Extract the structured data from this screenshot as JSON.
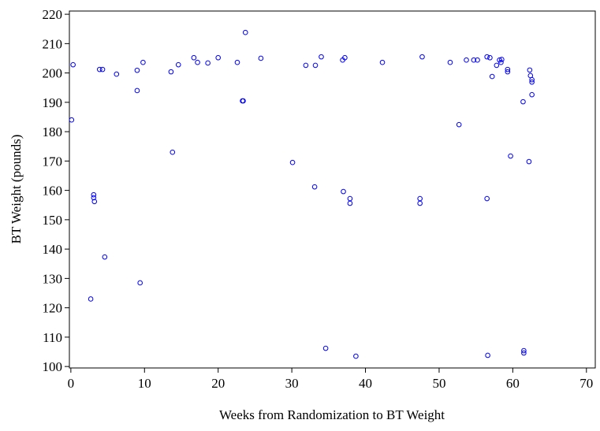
{
  "chart_data": {
    "type": "scatter",
    "x_label": "Weeks from Randomization to BT Weight",
    "y_label": "BT Weight (pounds)",
    "xlim": [
      -0.2,
      71.2
    ],
    "ylim": [
      99.5,
      221.1
    ],
    "xticks": [
      0,
      10,
      20,
      30,
      40,
      50,
      60,
      70
    ],
    "yticks": [
      100,
      110,
      120,
      130,
      140,
      150,
      160,
      170,
      180,
      190,
      200,
      210,
      220
    ],
    "color": "#0000ff",
    "x": [
      0.1,
      0.3,
      2.7,
      3.1,
      3.1,
      3.2,
      3.9,
      4.3,
      4.6,
      6.2,
      9.0,
      9.0,
      9.4,
      9.8,
      13.6,
      13.8,
      14.6,
      16.7,
      17.2,
      18.6,
      20.0,
      22.6,
      23.3,
      23.4,
      23.7,
      25.8,
      30.1,
      31.9,
      33.1,
      33.2,
      34.0,
      34.6,
      36.9,
      37.2,
      37.0,
      37.9,
      37.9,
      38.7,
      42.3,
      47.4,
      47.4,
      47.7,
      51.5,
      52.7,
      53.7,
      54.7,
      55.2,
      56.5,
      56.9,
      56.5,
      56.6,
      57.2,
      57.8,
      58.2,
      58.5,
      58.4,
      59.3,
      59.3,
      59.7,
      61.4,
      61.5,
      61.5,
      62.2,
      62.3,
      62.4,
      62.6,
      62.6,
      62.6
    ],
    "values": [
      184,
      202.8,
      123,
      158.5,
      157.5,
      156.2,
      201.2,
      201.2,
      137.3,
      199.6,
      200.9,
      194,
      128.5,
      203.6,
      200.4,
      173,
      202.8,
      205.2,
      203.6,
      203.4,
      205.2,
      203.6,
      190.5,
      190.5,
      213.8,
      205,
      169.5,
      202.6,
      161.2,
      202.6,
      205.5,
      106.2,
      204.4,
      205.2,
      159.6,
      157.2,
      155.6,
      103.5,
      203.6,
      157.2,
      155.6,
      205.5,
      203.6,
      182.4,
      204.4,
      204.4,
      204.4,
      205.5,
      205.2,
      157.2,
      103.8,
      198.8,
      202.6,
      204.4,
      204.6,
      203.6,
      201.2,
      200.4,
      171.7,
      190.2,
      105.4,
      104.6,
      169.8,
      201,
      199.1,
      197.7,
      196.9,
      192.6
    ]
  }
}
